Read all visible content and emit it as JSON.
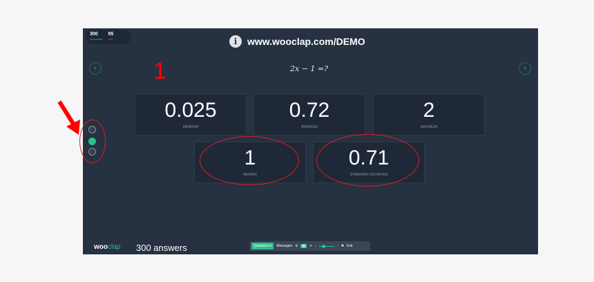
{
  "header": {
    "connected_count": "300",
    "connected_label": "connected",
    "lost_count": "55",
    "lost_label": "lost",
    "url": "www.wooclap.com/DEMO"
  },
  "question": {
    "text": "2x − 1 =?",
    "annotation_number": "1"
  },
  "stats": [
    {
      "value": "0.025",
      "label": "MINIMUM"
    },
    {
      "value": "0.72",
      "label": "AVERAGE"
    },
    {
      "value": "2",
      "label": "MAXIMUM"
    },
    {
      "value": "1",
      "label": "MEDIAN"
    },
    {
      "value": "0.71",
      "label": "STANDARD DEVIATION"
    }
  ],
  "footer": {
    "logo_a": "woo",
    "logo_b": "clap",
    "answers": "300 answers"
  },
  "toolbar": {
    "questions": "Questions ▾",
    "messages": "Messages",
    "exit": "Exit"
  },
  "colors": {
    "accent": "#2bc08a",
    "background": "#263141",
    "annotation": "#ff0000"
  }
}
